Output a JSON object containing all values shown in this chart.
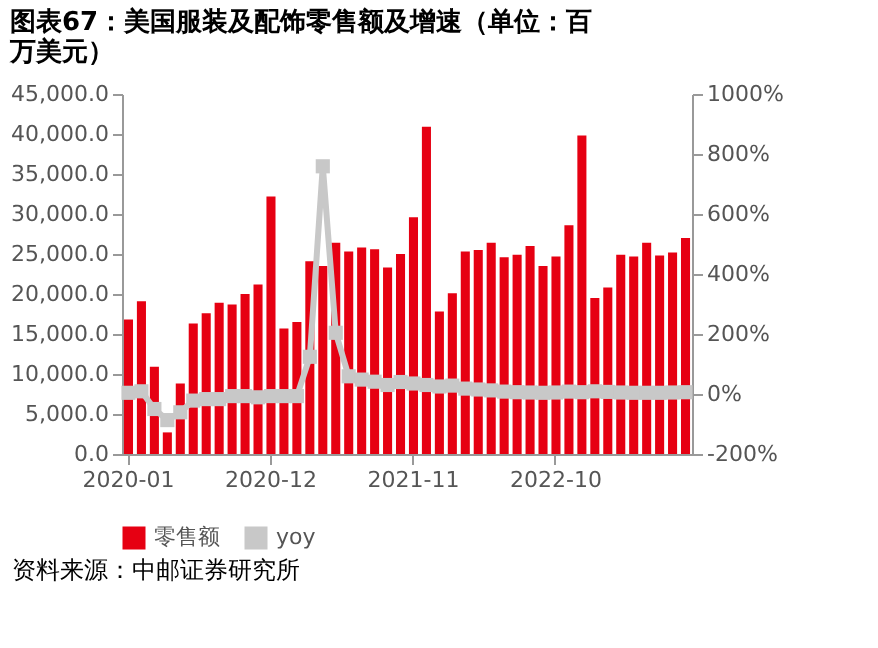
{
  "chart_data": {
    "type": "bar",
    "title": [
      "图表67：美国服装及配饰零售额及增速（单位：百",
      "万美元）"
    ],
    "categories": [
      "2020-01",
      null,
      null,
      null,
      null,
      null,
      null,
      null,
      null,
      null,
      null,
      "2020-12",
      null,
      null,
      null,
      null,
      null,
      null,
      null,
      null,
      null,
      null,
      "2021-11",
      null,
      null,
      null,
      null,
      null,
      null,
      null,
      null,
      null,
      null,
      "2022-10",
      null,
      null,
      null,
      null,
      null,
      null,
      null,
      null,
      null,
      null
    ],
    "series": [
      {
        "name": "零售额",
        "color": "#e60012",
        "values": [
          16800,
          19100,
          10900,
          2700,
          8800,
          16300,
          17600,
          18900,
          18700,
          20000,
          21200,
          32200,
          15700,
          16500,
          24100,
          23500,
          26400,
          25300,
          25800,
          25600,
          23300,
          25000,
          29600,
          40900,
          17800,
          20100,
          25300,
          25500,
          26400,
          24600,
          24900,
          26000,
          23500,
          24700,
          28600,
          39800,
          19500,
          20800,
          24900,
          24700,
          26400,
          24800,
          25200,
          27000
        ]
      },
      {
        "name": "yoy",
        "type": "line",
        "axis": "y2",
        "color": "#c8c8c8",
        "marker": "square",
        "values": [
          4,
          9,
          -50,
          -87,
          -61,
          -22,
          -17,
          -17,
          -7,
          -7,
          -11,
          -7,
          -7,
          -7,
          124,
          759,
          204,
          59,
          48,
          41,
          30,
          40,
          35,
          30,
          25,
          28,
          18,
          15,
          12,
          8,
          6,
          5,
          4,
          5,
          8,
          6,
          9,
          7,
          5,
          4,
          4,
          4,
          5,
          6
        ]
      }
    ],
    "ylim": [
      0,
      45000
    ],
    "yticks": [
      {
        "value": 0,
        "label": "0.0"
      },
      {
        "value": 5000,
        "label": "5,000.0"
      },
      {
        "value": 10000,
        "label": "10,000.0"
      },
      {
        "value": 15000,
        "label": "15,000.0"
      },
      {
        "value": 20000,
        "label": "20,000.0"
      },
      {
        "value": 25000,
        "label": "25,000.0"
      },
      {
        "value": 30000,
        "label": "30,000.0"
      },
      {
        "value": 35000,
        "label": "35,000.0"
      },
      {
        "value": 40000,
        "label": "40,000.0"
      },
      {
        "value": 45000,
        "label": "45,000.0"
      }
    ],
    "y2lim": [
      -200,
      1000
    ],
    "y2ticks": [
      {
        "value": -200,
        "label": "-200%"
      },
      {
        "value": 0,
        "label": "0%"
      },
      {
        "value": 200,
        "label": "200%"
      },
      {
        "value": 400,
        "label": "400%"
      },
      {
        "value": 600,
        "label": "600%"
      },
      {
        "value": 800,
        "label": "800%"
      },
      {
        "value": 1000,
        "label": "1000%"
      }
    ],
    "legend": "bottom",
    "grid": false,
    "annotations": [
      "资料来源：中邮证券研究所"
    ]
  }
}
